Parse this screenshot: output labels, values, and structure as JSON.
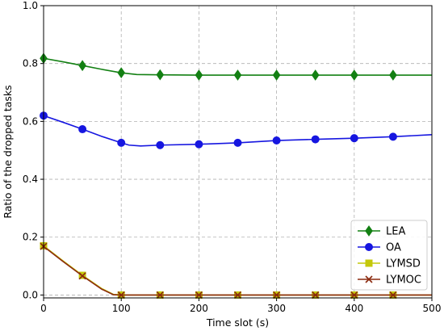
{
  "chart_data": {
    "type": "line",
    "title": "",
    "xlabel": "Time slot (s)",
    "ylabel": "Ratio of the dropped tasks",
    "xlim": [
      0,
      500
    ],
    "ylim": [
      -0.01,
      1.0
    ],
    "x_ticks": [
      0,
      100,
      200,
      300,
      400,
      500
    ],
    "y_ticks": [
      0.0,
      0.2,
      0.4,
      0.6,
      0.8,
      1.0
    ],
    "grid": true,
    "grid_style": "dashed",
    "legend_position": "lower-right",
    "series": [
      {
        "name": "LEA",
        "color": "#138013",
        "marker": "diamond",
        "x": [
          0,
          25,
          50,
          75,
          100,
          120,
          150,
          200,
          250,
          300,
          350,
          400,
          450,
          500
        ],
        "y": [
          0.818,
          0.806,
          0.793,
          0.78,
          0.768,
          0.762,
          0.761,
          0.76,
          0.76,
          0.76,
          0.76,
          0.76,
          0.76,
          0.76
        ],
        "marker_x": [
          0,
          50,
          100,
          150,
          200,
          250,
          300,
          350,
          400,
          450
        ]
      },
      {
        "name": "OA",
        "color": "#1616e0",
        "marker": "circle",
        "x": [
          0,
          25,
          50,
          75,
          100,
          110,
          125,
          150,
          200,
          250,
          300,
          350,
          400,
          450,
          500
        ],
        "y": [
          0.62,
          0.597,
          0.573,
          0.548,
          0.526,
          0.518,
          0.515,
          0.518,
          0.521,
          0.526,
          0.534,
          0.538,
          0.542,
          0.547,
          0.554
        ],
        "marker_x": [
          0,
          50,
          100,
          150,
          200,
          250,
          300,
          350,
          400,
          450
        ]
      },
      {
        "name": "LYMSD",
        "color": "#c4c80a",
        "marker": "square",
        "x": [
          0,
          25,
          50,
          75,
          90,
          100,
          150,
          200,
          250,
          300,
          350,
          400,
          450,
          500
        ],
        "y": [
          0.17,
          0.118,
          0.068,
          0.022,
          0.002,
          0.0,
          0.0,
          0.0,
          0.0,
          0.0,
          0.0,
          0.0,
          0.0,
          0.0
        ],
        "marker_x": [
          0,
          50,
          100,
          150,
          200,
          250,
          300,
          350,
          400,
          450
        ]
      },
      {
        "name": "LYMOC",
        "color": "#8b2a0e",
        "marker": "x",
        "x": [
          0,
          25,
          50,
          75,
          90,
          100,
          150,
          200,
          250,
          300,
          350,
          400,
          450,
          500
        ],
        "y": [
          0.168,
          0.116,
          0.066,
          0.02,
          0.001,
          0.0,
          0.0,
          0.0,
          0.0,
          0.0,
          0.0,
          0.0,
          0.0,
          0.0
        ],
        "marker_x": [
          0,
          50,
          100,
          150,
          200,
          250,
          300,
          350,
          400,
          450
        ]
      }
    ]
  }
}
